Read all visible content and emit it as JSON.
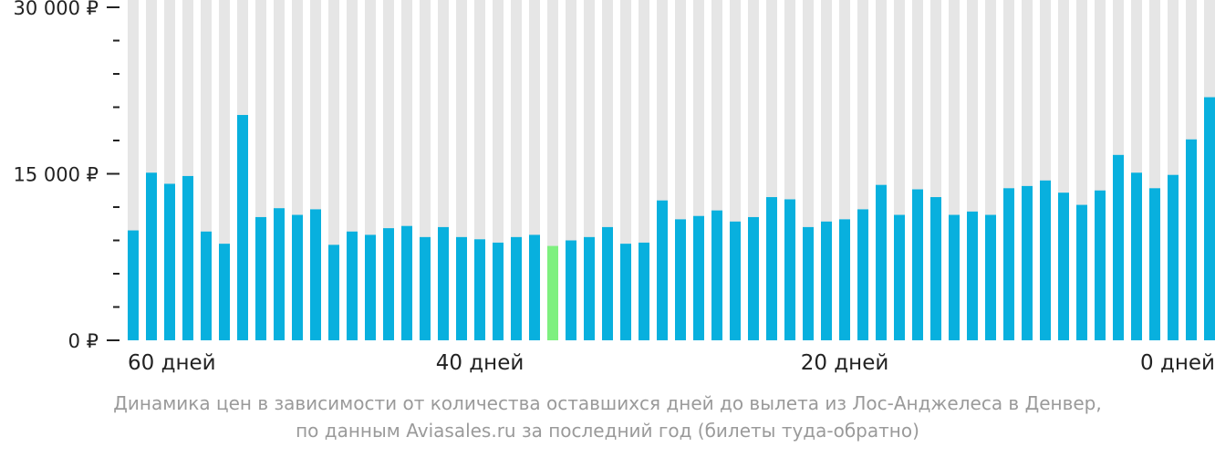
{
  "chart_data": {
    "type": "bar",
    "y_tick_labels": [
      "0 ₽",
      "15 000 ₽",
      "30 000 ₽"
    ],
    "y_tick_values": [
      0,
      15000,
      30000
    ],
    "x_tick_labels": [
      "60 дней",
      "40 дней",
      "20 дней",
      "0 дней"
    ],
    "x_tick_days": [
      59,
      40,
      20,
      0
    ],
    "ylim": [
      0,
      30000
    ],
    "days": [
      59,
      58,
      57,
      56,
      55,
      54,
      53,
      52,
      51,
      50,
      49,
      48,
      47,
      46,
      45,
      44,
      43,
      42,
      41,
      40,
      39,
      38,
      37,
      36,
      35,
      34,
      33,
      32,
      31,
      30,
      29,
      28,
      27,
      26,
      25,
      24,
      23,
      22,
      21,
      20,
      19,
      18,
      17,
      16,
      15,
      14,
      13,
      12,
      11,
      10,
      9,
      8,
      7,
      6,
      5,
      4,
      3,
      2,
      1,
      0
    ],
    "values": [
      9900,
      15100,
      14100,
      14800,
      9800,
      8700,
      20300,
      11100,
      11900,
      11300,
      11800,
      8600,
      9800,
      9500,
      10100,
      10300,
      9300,
      10200,
      9300,
      9100,
      8800,
      9300,
      9500,
      8500,
      9000,
      9300,
      10200,
      8700,
      8800,
      12600,
      10900,
      11200,
      11700,
      10700,
      11100,
      12900,
      12700,
      10200,
      10700,
      10900,
      11800,
      14000,
      11300,
      13600,
      12900,
      11300,
      11600,
      11300,
      13700,
      13900,
      14400,
      13300,
      12200,
      13500,
      16700,
      15100,
      13700,
      14900,
      18100,
      21900
    ],
    "highlight_index": 23,
    "colors": {
      "bar": "#08b0de",
      "highlight": "#7ef07f",
      "background_bar": "#e6e6e6",
      "axis": "#222222"
    }
  },
  "caption": {
    "line1": "Динамика цен в зависимости от количества оставшихся дней до вылета из Лос-Анджелеса в Денвер,",
    "line2": "по данным Aviasales.ru за последний год (билеты туда-обратно)"
  }
}
